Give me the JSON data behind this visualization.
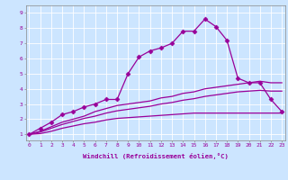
{
  "xlabel": "Windchill (Refroidissement éolien,°C)",
  "bg_color": "#cce5ff",
  "line_color": "#990099",
  "grid_color": "#ffffff",
  "x_ticks": [
    0,
    1,
    2,
    3,
    4,
    5,
    6,
    7,
    8,
    9,
    10,
    11,
    12,
    13,
    14,
    15,
    16,
    17,
    18,
    19,
    20,
    21,
    22,
    23
  ],
  "y_ticks": [
    1,
    2,
    3,
    4,
    5,
    6,
    7,
    8,
    9
  ],
  "xlim": [
    -0.3,
    23.3
  ],
  "ylim": [
    0.6,
    9.5
  ],
  "line1_x": [
    0,
    1,
    2,
    3,
    4,
    5,
    6,
    7,
    8,
    9,
    10,
    11,
    12,
    13,
    14,
    15,
    16,
    17,
    18,
    19,
    20,
    21,
    22,
    23
  ],
  "line1_y": [
    1.0,
    1.4,
    1.8,
    2.3,
    2.5,
    2.8,
    3.0,
    3.3,
    3.3,
    5.0,
    6.1,
    6.5,
    6.7,
    7.0,
    7.8,
    7.8,
    8.6,
    8.1,
    7.2,
    4.7,
    4.4,
    4.4,
    3.3,
    2.5
  ],
  "line2_x": [
    0,
    1,
    2,
    3,
    4,
    5,
    6,
    7,
    8,
    9,
    10,
    11,
    12,
    13,
    14,
    15,
    16,
    17,
    18,
    19,
    20,
    21,
    22,
    23
  ],
  "line2_y": [
    1.0,
    1.2,
    1.5,
    1.8,
    2.0,
    2.2,
    2.5,
    2.7,
    2.9,
    3.0,
    3.1,
    3.2,
    3.4,
    3.5,
    3.7,
    3.8,
    4.0,
    4.1,
    4.2,
    4.3,
    4.4,
    4.5,
    4.4,
    4.4
  ],
  "line3_x": [
    0,
    1,
    2,
    3,
    4,
    5,
    6,
    7,
    8,
    9,
    10,
    11,
    12,
    13,
    14,
    15,
    16,
    17,
    18,
    19,
    20,
    21,
    22,
    23
  ],
  "line3_y": [
    1.0,
    1.15,
    1.4,
    1.65,
    1.85,
    2.05,
    2.2,
    2.4,
    2.55,
    2.65,
    2.75,
    2.85,
    3.0,
    3.1,
    3.25,
    3.35,
    3.5,
    3.6,
    3.7,
    3.8,
    3.85,
    3.9,
    3.85,
    3.85
  ],
  "line4_x": [
    0,
    1,
    2,
    3,
    4,
    5,
    6,
    7,
    8,
    9,
    10,
    11,
    12,
    13,
    14,
    15,
    16,
    17,
    18,
    19,
    20,
    21,
    22,
    23
  ],
  "line4_y": [
    1.0,
    1.05,
    1.2,
    1.4,
    1.55,
    1.7,
    1.8,
    1.95,
    2.05,
    2.1,
    2.15,
    2.2,
    2.25,
    2.3,
    2.35,
    2.4,
    2.4,
    2.4,
    2.4,
    2.4,
    2.4,
    2.4,
    2.4,
    2.4
  ]
}
